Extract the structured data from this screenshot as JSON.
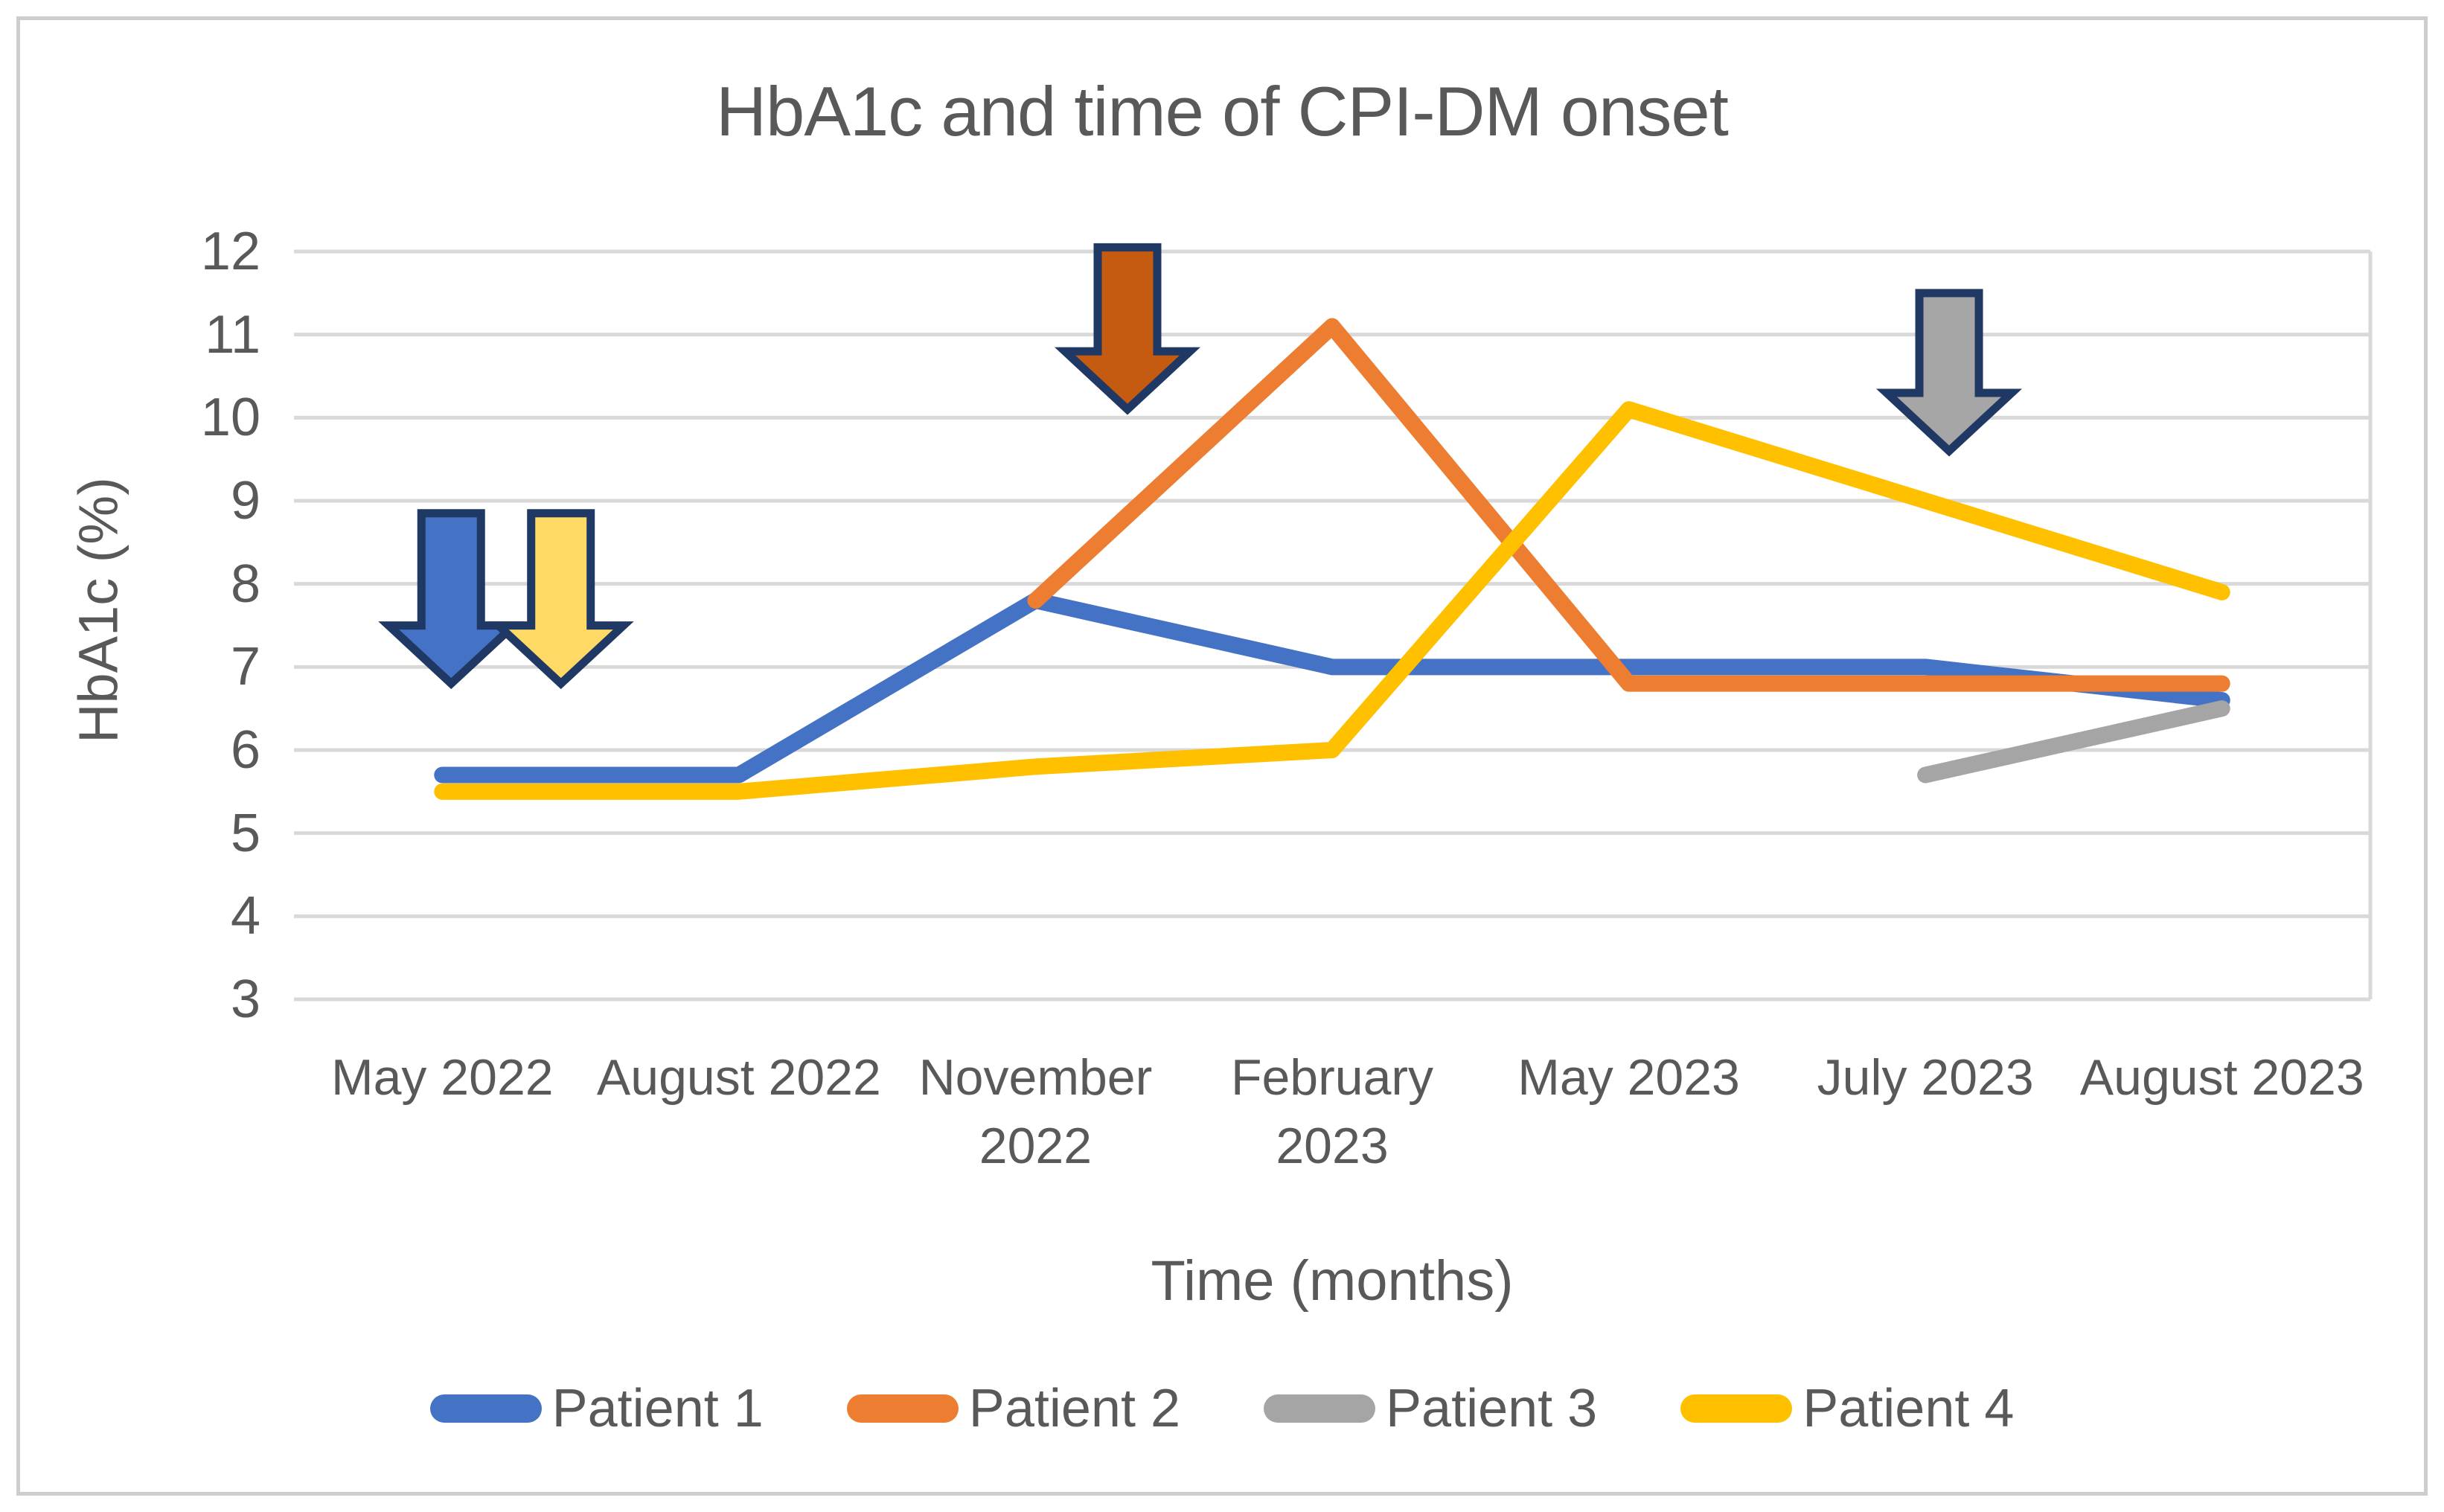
{
  "figure": {
    "background": "#FFFFFF",
    "border_color": "#CDCDCD"
  },
  "chart_data": {
    "type": "line",
    "title": "HbA1c and time of CPI-DM onset",
    "xlabel": "Time (months)",
    "ylabel": "HbA1c (%)",
    "categories": [
      "May 2022",
      "August 2022",
      "November 2022",
      "February 2023",
      "May 2023",
      "July 2023",
      "August 2023"
    ],
    "yticks": [
      12,
      11,
      10,
      9,
      8,
      7,
      6,
      5,
      4,
      3
    ],
    "ylim": [
      3,
      12
    ],
    "grid": true,
    "gridline_color": "#D9D9D9",
    "text_color": "#595959",
    "legend_position": "bottom",
    "series": [
      {
        "name": "Patient 1",
        "color": "#4472C4",
        "values": [
          5.7,
          5.7,
          7.8,
          7.0,
          7.0,
          7.0,
          6.6
        ]
      },
      {
        "name": "Patient 2",
        "color": "#ED7D31",
        "values": [
          null,
          null,
          7.8,
          11.1,
          6.8,
          6.8,
          6.8
        ]
      },
      {
        "name": "Patient 3",
        "color": "#A5A5A5",
        "values": [
          null,
          null,
          null,
          null,
          null,
          5.7,
          6.5
        ]
      },
      {
        "name": "Patient 4",
        "color": "#FFC000",
        "values": [
          5.5,
          5.5,
          5.8,
          6.0,
          10.1,
          9.0,
          7.9
        ]
      }
    ],
    "annotations": {
      "arrows": [
        {
          "name": "patient-1-onset-arrow",
          "series": "Patient 1",
          "x": 0.03,
          "y_top": 8.85,
          "y_tip": 6.8,
          "fill": "#4472C4",
          "outline": "#1F3864"
        },
        {
          "name": "patient-4-onset-arrow",
          "series": "Patient 4",
          "x": 0.4,
          "y_top": 8.85,
          "y_tip": 6.8,
          "fill": "#FFD966",
          "outline": "#1F3864"
        },
        {
          "name": "patient-2-onset-arrow",
          "series": "Patient 2",
          "x": 2.31,
          "y_top": 12.05,
          "y_tip": 10.1,
          "fill": "#C55A11",
          "outline": "#1F3864"
        },
        {
          "name": "patient-3-onset-arrow",
          "series": "Patient 3",
          "x": 5.08,
          "y_top": 11.5,
          "y_tip": 9.6,
          "fill": "#A6A6A6",
          "outline": "#1F3864"
        }
      ]
    }
  }
}
